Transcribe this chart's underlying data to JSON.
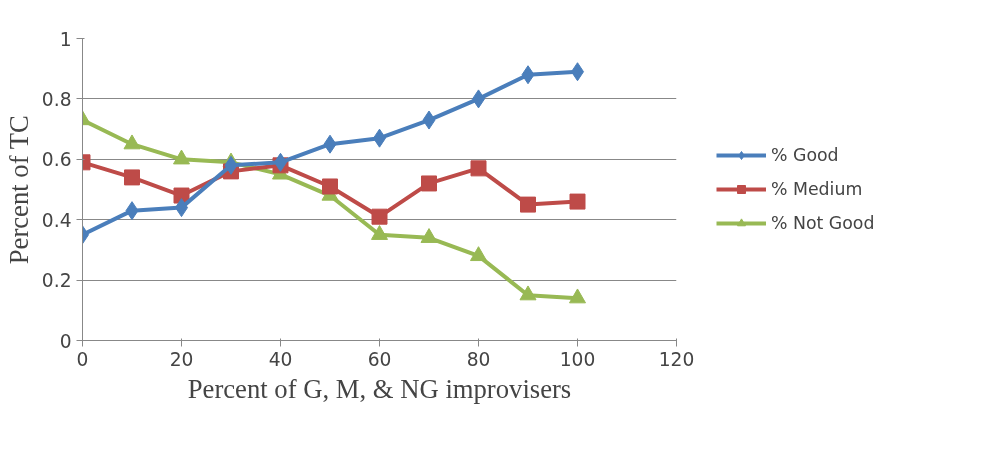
{
  "chart_data": {
    "type": "line",
    "xlabel": "Percent of G, M, & NG improvisers",
    "ylabel": "Percent of TC",
    "x": [
      0,
      10,
      20,
      30,
      40,
      50,
      60,
      70,
      80,
      90,
      100
    ],
    "series": [
      {
        "name": "% Good",
        "color": "#4a7ebb",
        "marker": "diamond",
        "values": [
          0.35,
          0.43,
          0.44,
          0.58,
          0.59,
          0.65,
          0.67,
          0.73,
          0.8,
          0.88,
          0.89
        ]
      },
      {
        "name": "% Medium",
        "color": "#be4b48",
        "marker": "square",
        "values": [
          0.59,
          0.54,
          0.48,
          0.56,
          0.58,
          0.51,
          0.41,
          0.52,
          0.57,
          0.45,
          0.46
        ]
      },
      {
        "name": "% Not Good",
        "color": "#98b954",
        "marker": "triangle",
        "values": [
          0.73,
          0.65,
          0.6,
          0.59,
          0.55,
          0.48,
          0.35,
          0.34,
          0.28,
          0.15,
          0.14
        ]
      }
    ],
    "xlim": [
      0,
      120
    ],
    "xticks": [
      0,
      20,
      40,
      60,
      80,
      100,
      120
    ],
    "ylim": [
      0,
      1
    ],
    "yticks": [
      0,
      0.2,
      0.4,
      0.6,
      0.8,
      1
    ],
    "grid": "y",
    "legend": "right",
    "line_style": "solid"
  }
}
